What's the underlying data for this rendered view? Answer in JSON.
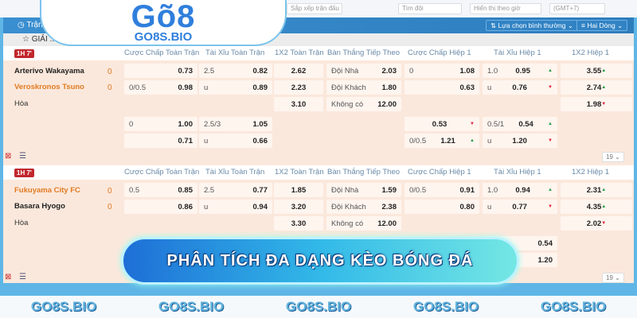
{
  "logo": {
    "brand": "Gõ8",
    "site": "GO8S.BIO"
  },
  "topbar": {
    "inputs": [
      "Sắp xếp trận đấu",
      "Tìm đội",
      "Hiển thị theo giờ",
      "(GMT+7)"
    ]
  },
  "toolbar": {
    "tab": "Trận Đấu",
    "option_select": "Lựa chọn bình thường",
    "lines_select": "Hai Dòng"
  },
  "league": {
    "name": "GIẢI ... GIA NHẬT BẢN"
  },
  "columns": [
    "Cược Chấp Toàn Trận",
    "Tài Xỉu Toàn Trận",
    "1X2 Toàn Trận",
    "Bàn Thắng Tiếp Theo",
    "Cược Chấp Hiệp 1",
    "Tài Xỉu Hiệp 1",
    "1X2 Hiệp 1"
  ],
  "matches": [
    {
      "time": "1H 7'",
      "home": "Arterivo Wakayama",
      "away": "Veroskronos Tsuno",
      "home_score": "0",
      "away_score": "0",
      "draw": "Hòa",
      "rows": [
        [
          "",
          "0.73",
          "2.5",
          "0.82",
          "2.62",
          "Đội Nhà",
          "2.03",
          "0",
          "1.08",
          "1.0",
          "0.95",
          "3.55"
        ],
        [
          "0/0.5",
          "0.98",
          "u",
          "0.89",
          "2.23",
          "Đội Khách",
          "1.80",
          "",
          "0.63",
          "u",
          "0.76",
          "2.74"
        ],
        [
          "",
          "",
          "",
          "",
          "3.10",
          "Không có",
          "12.00",
          "",
          "",
          "",
          "",
          "1.98"
        ]
      ],
      "extra": [
        [
          "0",
          "1.00",
          "2.5/3",
          "1.05",
          "",
          "0.53",
          "0.5/1",
          "0.54"
        ],
        [
          "",
          "0.71",
          "u",
          "0.66",
          "0/0.5",
          "1.21",
          "u",
          "1.20"
        ]
      ],
      "count": "19"
    },
    {
      "time": "1H 7'",
      "home": "Fukuyama City FC",
      "away": "Basara Hyogo",
      "home_score": "0",
      "away_score": "0",
      "draw": "Hòa",
      "rows": [
        [
          "0.5",
          "0.85",
          "2.5",
          "0.77",
          "1.85",
          "Đội Nhà",
          "1.59",
          "0/0.5",
          "0.91",
          "1.0",
          "0.94",
          "2.31"
        ],
        [
          "",
          "0.86",
          "u",
          "0.94",
          "3.20",
          "Đội Khách",
          "2.38",
          "",
          "0.80",
          "u",
          "0.77",
          "4.35"
        ],
        [
          "",
          "",
          "",
          "",
          "3.30",
          "Không có",
          "12.00",
          "",
          "",
          "",
          "",
          "2.02"
        ]
      ],
      "extra": [
        [
          "0.54"
        ],
        [
          "1.20"
        ]
      ],
      "count": "19"
    }
  ],
  "banner": "PHÂN TÍCH ĐA DẠNG KÈO BÓNG ĐÁ",
  "watermarks": [
    "GO8S.BIO",
    "GO8S.BIO",
    "GO8S.BIO",
    "GO8S.BIO",
    "GO8S.BIO"
  ]
}
